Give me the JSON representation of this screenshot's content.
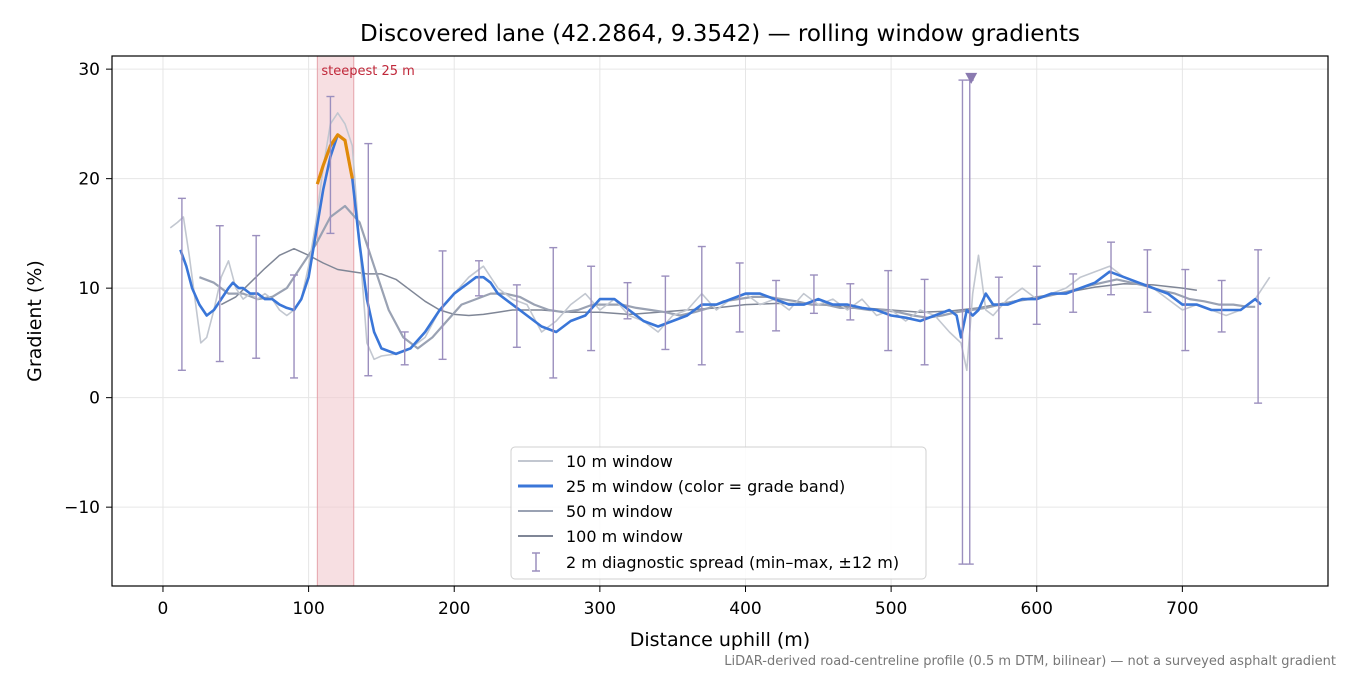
{
  "chart_data": {
    "type": "line",
    "title": "Discovered lane (42.2864, 9.3542) — rolling window gradients",
    "xlabel": "Distance uphill (m)",
    "ylabel": "Gradient (%)",
    "xlim": [
      -35,
      800
    ],
    "ylim": [
      -17.2,
      31.2
    ],
    "xticks": [
      0,
      100,
      200,
      300,
      400,
      500,
      600,
      700
    ],
    "yticks": [
      -10,
      0,
      10,
      20,
      30
    ],
    "xtick_labels": [
      "0",
      "100",
      "200",
      "300",
      "400",
      "500",
      "600",
      "700"
    ],
    "ytick_labels": [
      "−10",
      "0",
      "10",
      "20",
      "30"
    ],
    "grid": true,
    "legend_position": "lower-center",
    "footnote": "LiDAR-derived road-centreline profile (0.5 m DTM, bilinear) — not a surveyed asphalt gradient",
    "steepest": {
      "label": "steepest 25 m",
      "x_start": 106,
      "x_end": 131,
      "color": "#f2c9ce"
    },
    "series": [
      {
        "name": "10 m window",
        "color": "#c2c7d0",
        "x": [
          5,
          10,
          14,
          18,
          22,
          26,
          30,
          35,
          40,
          45,
          50,
          55,
          60,
          65,
          70,
          75,
          80,
          85,
          90,
          95,
          100,
          105,
          110,
          115,
          120,
          125,
          130,
          135,
          140,
          145,
          150,
          160,
          170,
          180,
          190,
          200,
          210,
          220,
          230,
          240,
          250,
          260,
          270,
          280,
          290,
          300,
          310,
          320,
          330,
          340,
          350,
          360,
          370,
          380,
          390,
          400,
          410,
          420,
          430,
          440,
          450,
          460,
          470,
          480,
          490,
          500,
          510,
          520,
          530,
          540,
          548,
          552,
          556,
          560,
          565,
          570,
          580,
          590,
          600,
          610,
          620,
          630,
          640,
          650,
          660,
          670,
          680,
          690,
          700,
          710,
          720,
          730,
          740,
          750,
          760
        ],
        "values": [
          15.5,
          16,
          16.5,
          13,
          9,
          5,
          5.5,
          8,
          11,
          12.5,
          10,
          9,
          9.5,
          9,
          9.5,
          9,
          8,
          7.5,
          8,
          9,
          12,
          16,
          21,
          25,
          26,
          25,
          23,
          14,
          5,
          3.5,
          3.8,
          4,
          4.5,
          5.5,
          8,
          9.5,
          11,
          12,
          10,
          9,
          8.5,
          6,
          7,
          8.5,
          9.5,
          8,
          9,
          7.5,
          7,
          6,
          7.5,
          8,
          9.5,
          8,
          9,
          9.5,
          8.5,
          9,
          8,
          9.5,
          8.5,
          9,
          8,
          9,
          7.5,
          8,
          7,
          8,
          7.5,
          6,
          5,
          2.5,
          9.5,
          13,
          8,
          7.5,
          9,
          10,
          9,
          9.5,
          10,
          11,
          11.5,
          12,
          11,
          10.5,
          10,
          9,
          8,
          8.5,
          8,
          7.5,
          8,
          9,
          11
        ]
      },
      {
        "name": "25 m window (color = grade band)",
        "color": "#3a76d8",
        "x": [
          12,
          16,
          20,
          25,
          30,
          35,
          40,
          45,
          48,
          52,
          55,
          60,
          65,
          70,
          75,
          80,
          85,
          90,
          95,
          100,
          105,
          110,
          115,
          120,
          125,
          130,
          135,
          140,
          145,
          150,
          160,
          170,
          180,
          190,
          200,
          210,
          215,
          220,
          225,
          230,
          240,
          250,
          260,
          270,
          280,
          290,
          300,
          310,
          320,
          330,
          340,
          350,
          360,
          370,
          380,
          390,
          400,
          410,
          420,
          430,
          440,
          450,
          460,
          470,
          480,
          490,
          500,
          510,
          520,
          530,
          540,
          545,
          548,
          552,
          556,
          560,
          565,
          570,
          580,
          590,
          600,
          610,
          620,
          630,
          640,
          650,
          660,
          670,
          680,
          690,
          700,
          710,
          720,
          730,
          740,
          750,
          754
        ],
        "values": [
          13.5,
          12,
          10,
          8.5,
          7.5,
          8,
          9,
          10,
          10.5,
          10,
          10,
          9.5,
          9.5,
          9,
          9,
          8.5,
          8.2,
          8,
          9,
          11,
          15,
          19,
          22,
          24,
          23.5,
          20,
          14,
          9,
          6,
          4.5,
          4,
          4.5,
          6,
          8,
          9.5,
          10.5,
          11,
          11,
          10.5,
          9.5,
          8.5,
          7.5,
          6.5,
          6,
          7,
          7.5,
          9,
          9,
          8,
          7,
          6.5,
          7,
          7.5,
          8.5,
          8.5,
          9,
          9.5,
          9.5,
          9,
          8.5,
          8.5,
          9,
          8.5,
          8.5,
          8.2,
          8,
          7.5,
          7.3,
          7,
          7.5,
          8,
          7.5,
          5.5,
          8,
          7.5,
          8,
          9.5,
          8.5,
          8.5,
          9,
          9,
          9.5,
          9.5,
          10,
          10.5,
          11.5,
          11,
          10.5,
          10,
          9.5,
          8.5,
          8.5,
          8,
          8,
          8,
          9,
          8.5
        ]
      },
      {
        "name": "50 m window",
        "color": "#9aa2b3",
        "x": [
          25,
          35,
          45,
          55,
          65,
          75,
          85,
          95,
          105,
          115,
          125,
          135,
          145,
          155,
          165,
          175,
          185,
          195,
          205,
          215,
          225,
          235,
          245,
          255,
          265,
          275,
          285,
          295,
          305,
          315,
          325,
          335,
          345,
          355,
          365,
          375,
          385,
          395,
          405,
          415,
          425,
          435,
          445,
          455,
          465,
          475,
          485,
          495,
          505,
          515,
          525,
          535,
          545,
          555,
          565,
          575,
          585,
          595,
          605,
          615,
          625,
          635,
          645,
          655,
          665,
          675,
          685,
          695,
          705,
          715,
          725,
          735,
          745,
          750
        ],
        "values": [
          11,
          10.5,
          9.5,
          9.5,
          9,
          9.2,
          10,
          12,
          14,
          16.5,
          17.5,
          16,
          12,
          8,
          5.5,
          4.5,
          5.5,
          7,
          8.5,
          9,
          9.5,
          9.5,
          9.2,
          8.5,
          8,
          7.8,
          8,
          8.5,
          8.5,
          8.5,
          8.2,
          8,
          7.8,
          7.5,
          7.8,
          8.2,
          8.8,
          9,
          9.2,
          9.2,
          9,
          8.8,
          8.5,
          8.5,
          8.2,
          8.2,
          8,
          8,
          7.8,
          7.5,
          7.3,
          7.5,
          7.8,
          8,
          8.2,
          8.5,
          8.8,
          9,
          9.2,
          9.5,
          9.8,
          10.2,
          10.5,
          10.8,
          10.5,
          10.2,
          9.8,
          9.5,
          9,
          8.8,
          8.5,
          8.5,
          8.3,
          8.3
        ]
      },
      {
        "name": "100 m window",
        "color": "#7f8696",
        "x": [
          40,
          50,
          60,
          70,
          80,
          90,
          100,
          110,
          120,
          130,
          140,
          150,
          160,
          170,
          180,
          190,
          200,
          210,
          220,
          230,
          240,
          260,
          280,
          300,
          320,
          340,
          360,
          380,
          400,
          420,
          440,
          460,
          480,
          500,
          520,
          540,
          560,
          580,
          600,
          620,
          640,
          660,
          680,
          700,
          710
        ],
        "values": [
          8.5,
          9.2,
          10.5,
          11.8,
          13,
          13.6,
          13,
          12.3,
          11.7,
          11.5,
          11.3,
          11.3,
          10.8,
          9.8,
          8.8,
          8,
          7.6,
          7.5,
          7.6,
          7.8,
          8,
          8,
          7.8,
          7.8,
          7.6,
          7.8,
          8,
          8.2,
          8.5,
          8.6,
          8.6,
          8.4,
          8.2,
          8,
          7.8,
          7.9,
          8.2,
          8.7,
          9.2,
          9.6,
          10.1,
          10.4,
          10.3,
          10,
          9.8
        ]
      }
    ],
    "steep_segment": {
      "color": "#e08a0a",
      "x": [
        106,
        110,
        115,
        120,
        125,
        130
      ],
      "values": [
        19.5,
        21.2,
        23,
        24,
        23.5,
        20
      ]
    },
    "spread": {
      "name": "2 m diagnostic spread (min–max, ±12 m)",
      "color": "#9b8fbe",
      "x": [
        13,
        39,
        64,
        90,
        115,
        141,
        166,
        192,
        217,
        243,
        268,
        294,
        319,
        345,
        370,
        396,
        421,
        447,
        472,
        498,
        523,
        549,
        554,
        574,
        600,
        625,
        651,
        676,
        702,
        727,
        752
      ],
      "min": [
        2.5,
        3.3,
        3.6,
        1.8,
        15,
        2,
        3,
        3.5,
        9.3,
        4.6,
        1.8,
        4.3,
        7.2,
        4.4,
        3,
        6,
        6.1,
        7.7,
        7.1,
        4.3,
        3,
        -15.2,
        -15.2,
        5.4,
        6.7,
        7.8,
        9.4,
        7.8,
        4.3,
        6,
        -0.5
      ],
      "max": [
        18.2,
        15.7,
        14.8,
        11.2,
        27.5,
        23.2,
        6,
        13.4,
        12.5,
        10.3,
        13.7,
        12,
        10.5,
        11.1,
        13.8,
        12.3,
        10.7,
        11.2,
        10.4,
        11.6,
        10.8,
        29,
        29,
        11,
        12,
        11.3,
        14.2,
        13.5,
        11.7,
        10.7,
        13.5
      ]
    },
    "clipped_marker": {
      "x": 555,
      "y": 29.2,
      "color": "#8a7ab0"
    }
  }
}
